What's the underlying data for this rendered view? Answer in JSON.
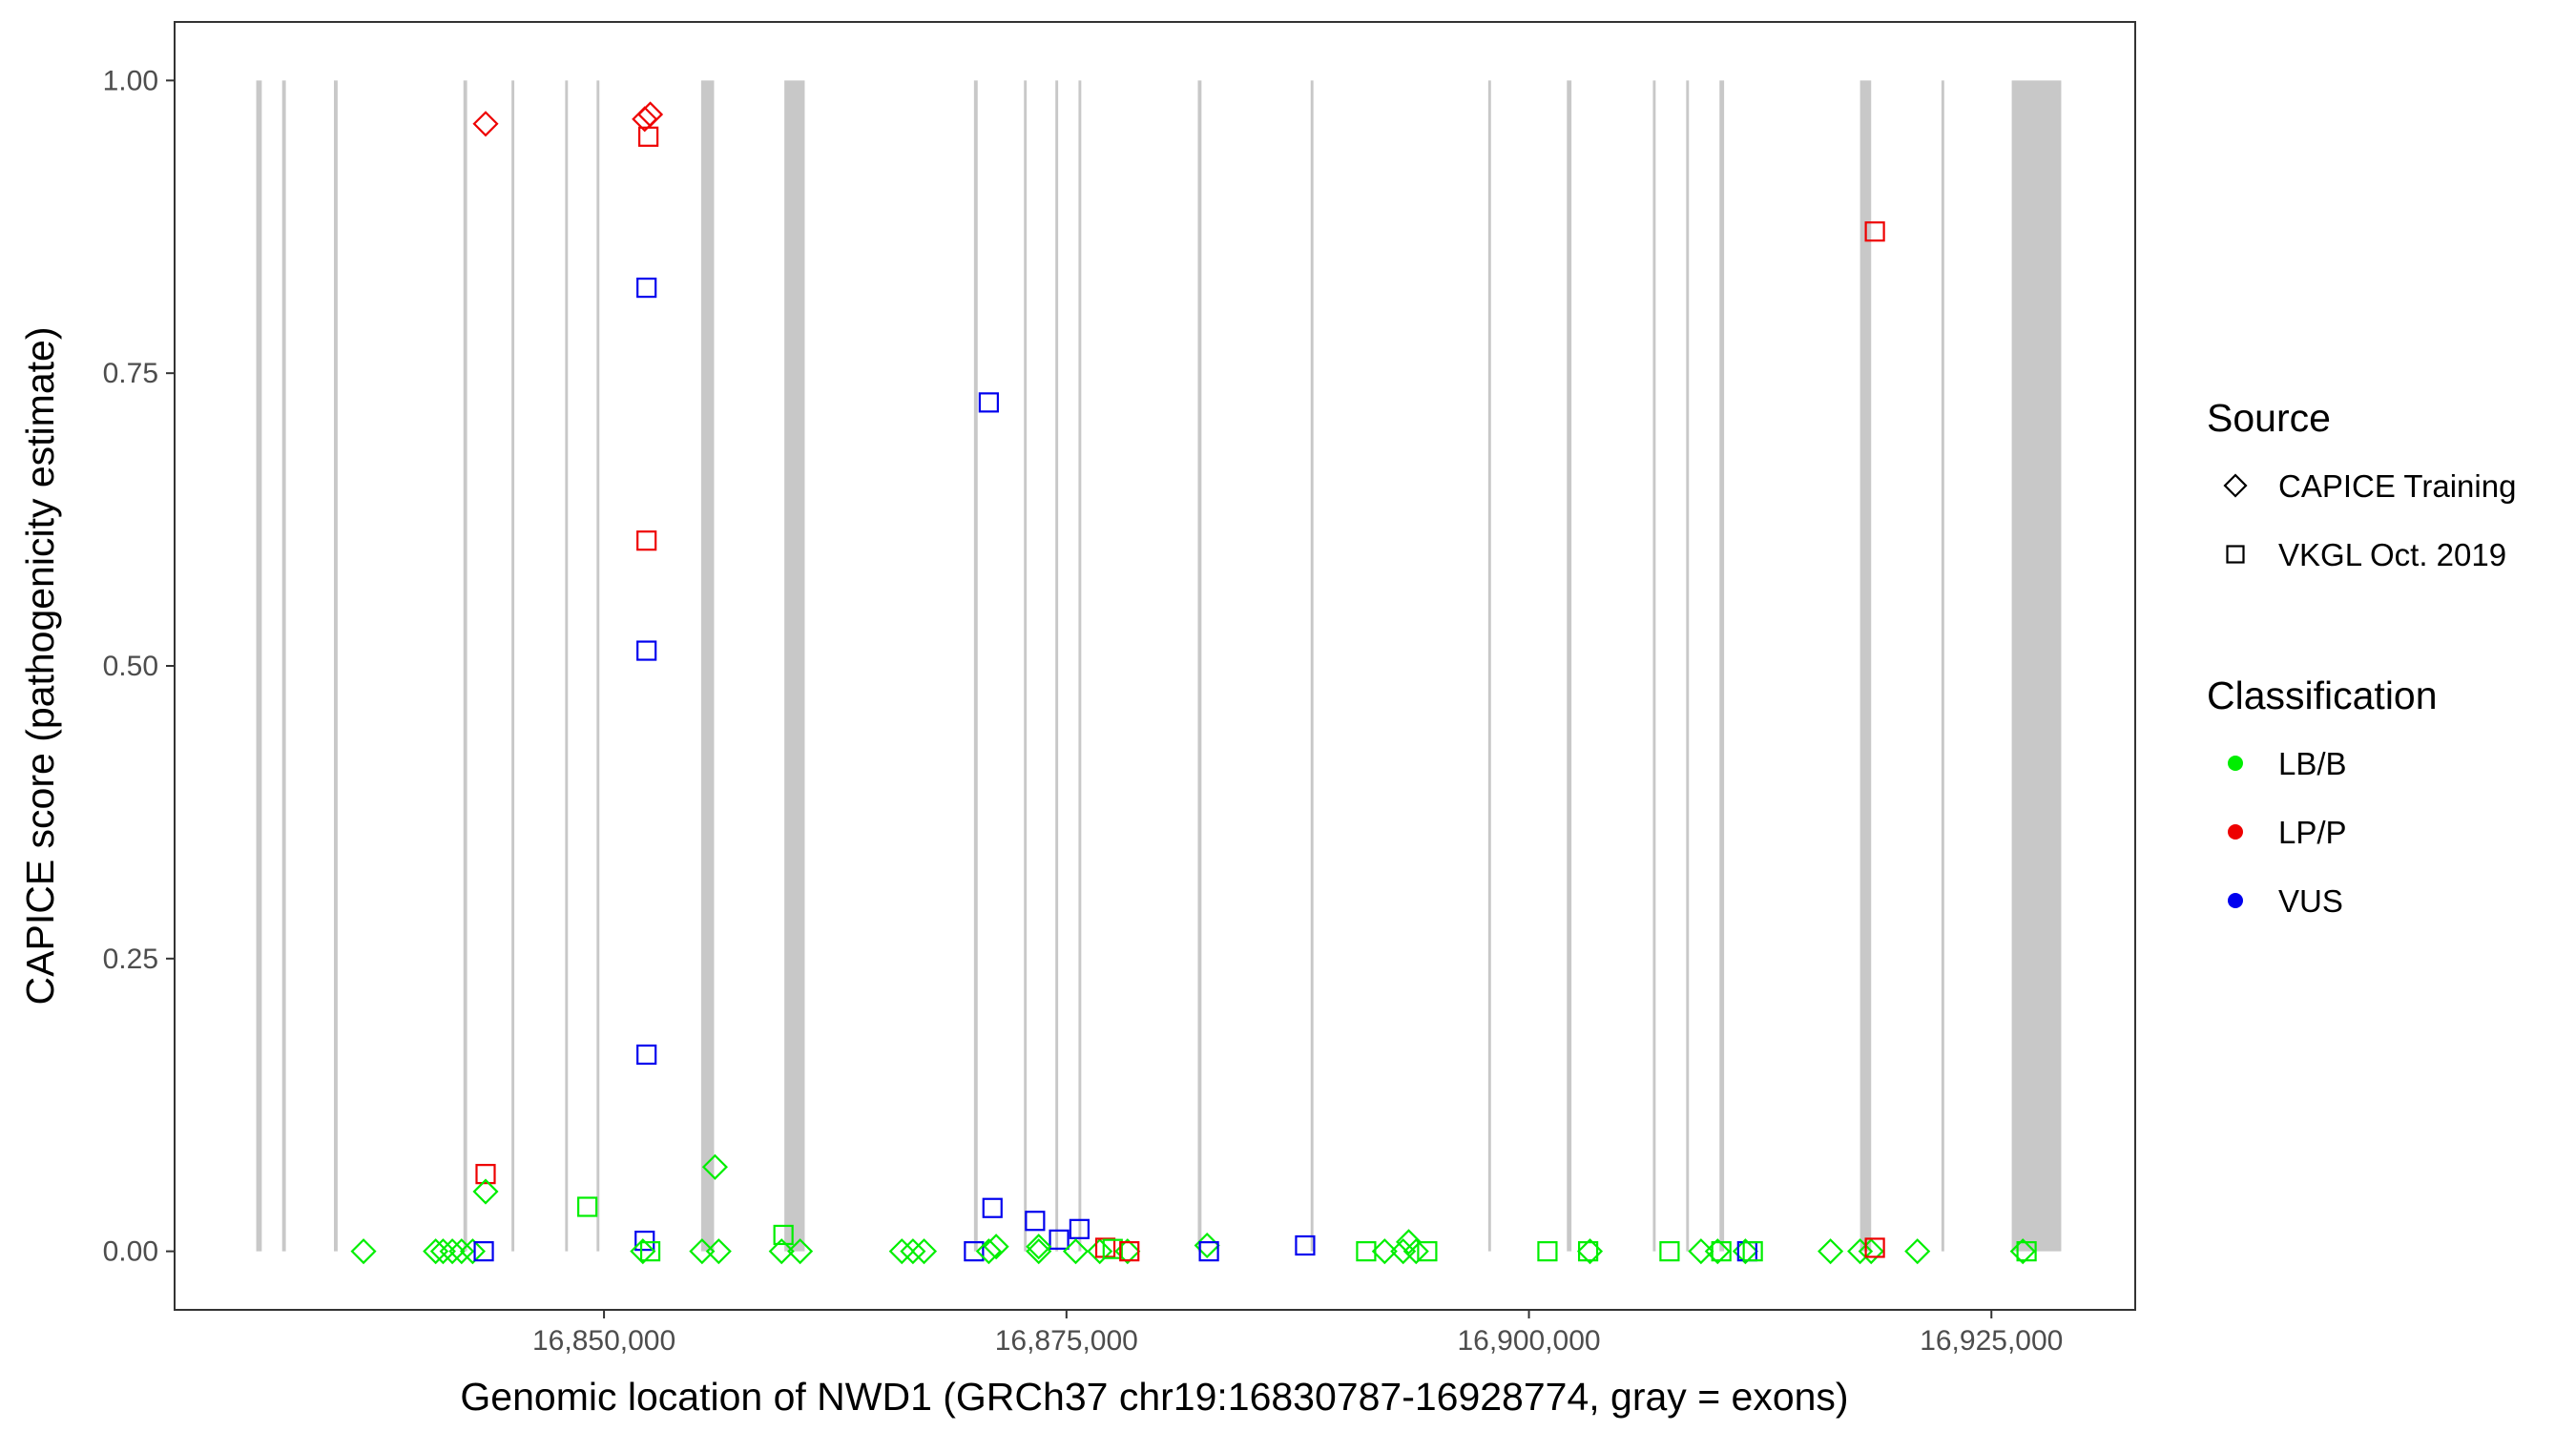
{
  "chart_data": {
    "type": "scatter",
    "title": "",
    "xlabel": "Genomic location of NWD1 (GRCh37 chr19:16830787-16928774, gray = exons)",
    "ylabel": "CAPICE score (pathogenicity estimate)",
    "xlim": [
      16826787,
      16932774
    ],
    "ylim": [
      -0.05,
      1.05
    ],
    "x_ticks": [
      {
        "value": 16850000,
        "label": "16,850,000"
      },
      {
        "value": 16875000,
        "label": "16,875,000"
      },
      {
        "value": 16900000,
        "label": "16,900,000"
      },
      {
        "value": 16925000,
        "label": "16,925,000"
      }
    ],
    "y_ticks": [
      {
        "value": 0,
        "label": "0.00"
      },
      {
        "value": 0.25,
        "label": "0.25"
      },
      {
        "value": 0.5,
        "label": "0.50"
      },
      {
        "value": 0.75,
        "label": "0.75"
      },
      {
        "value": 1,
        "label": "1.00"
      }
    ],
    "grid": false,
    "exons": [
      [
        16831200,
        16831500
      ],
      [
        16832600,
        16832800
      ],
      [
        16835400,
        16835600
      ],
      [
        16842400,
        16842600
      ],
      [
        16845000,
        16845150
      ],
      [
        16847900,
        16848050
      ],
      [
        16849600,
        16849750
      ],
      [
        16855250,
        16855950
      ],
      [
        16859750,
        16860850
      ],
      [
        16870000,
        16870200
      ],
      [
        16872700,
        16872850
      ],
      [
        16874400,
        16874550
      ],
      [
        16875650,
        16875800
      ],
      [
        16882100,
        16882300
      ],
      [
        16888200,
        16888350
      ],
      [
        16897800,
        16897950
      ],
      [
        16902050,
        16902300
      ],
      [
        16906700,
        16906850
      ],
      [
        16908500,
        16908650
      ],
      [
        16910300,
        16910550
      ],
      [
        16917900,
        16918500
      ],
      [
        16922300,
        16922450
      ],
      [
        16926100,
        16928774
      ]
    ],
    "legend_position": "right",
    "legend": {
      "source_title": "Source",
      "source": [
        {
          "label": "CAPICE Training",
          "shape": "diamond"
        },
        {
          "label": "VKGL Oct. 2019",
          "shape": "square"
        }
      ],
      "class_title": "Classification",
      "classes": [
        {
          "label": "LB/B",
          "color": "#00ee00"
        },
        {
          "label": "LP/P",
          "color": "#ee0000"
        },
        {
          "label": "VUS",
          "color": "#0000ee"
        }
      ]
    },
    "class_colors": {
      "LB/B": "#00ee00",
      "LP/P": "#ee0000",
      "VUS": "#0000ee"
    },
    "points": [
      {
        "x": 16843600,
        "y": 0.963,
        "shape": "diamond",
        "cls": "LP/P"
      },
      {
        "x": 16852200,
        "y": 0.967,
        "shape": "diamond",
        "cls": "LP/P"
      },
      {
        "x": 16852500,
        "y": 0.971,
        "shape": "diamond",
        "cls": "LP/P"
      },
      {
        "x": 16852400,
        "y": 0.952,
        "shape": "square",
        "cls": "LP/P"
      },
      {
        "x": 16852300,
        "y": 0.823,
        "shape": "square",
        "cls": "VUS"
      },
      {
        "x": 16870800,
        "y": 0.725,
        "shape": "square",
        "cls": "VUS"
      },
      {
        "x": 16852300,
        "y": 0.607,
        "shape": "square",
        "cls": "LP/P"
      },
      {
        "x": 16852300,
        "y": 0.513,
        "shape": "square",
        "cls": "VUS"
      },
      {
        "x": 16852300,
        "y": 0.168,
        "shape": "square",
        "cls": "VUS"
      },
      {
        "x": 16918700,
        "y": 0.871,
        "shape": "square",
        "cls": "LP/P"
      },
      {
        "x": 16843600,
        "y": 0.066,
        "shape": "square",
        "cls": "LP/P"
      },
      {
        "x": 16843600,
        "y": 0.051,
        "shape": "diamond",
        "cls": "LB/B"
      },
      {
        "x": 16849100,
        "y": 0.038,
        "shape": "square",
        "cls": "LB/B"
      },
      {
        "x": 16856000,
        "y": 0.072,
        "shape": "diamond",
        "cls": "LB/B"
      },
      {
        "x": 16859700,
        "y": 0.014,
        "shape": "square",
        "cls": "LB/B"
      },
      {
        "x": 16852200,
        "y": 0.009,
        "shape": "square",
        "cls": "VUS"
      },
      {
        "x": 16871000,
        "y": 0.037,
        "shape": "square",
        "cls": "VUS"
      },
      {
        "x": 16873300,
        "y": 0.026,
        "shape": "square",
        "cls": "VUS"
      },
      {
        "x": 16874600,
        "y": 0.01,
        "shape": "square",
        "cls": "VUS"
      },
      {
        "x": 16875700,
        "y": 0.019,
        "shape": "square",
        "cls": "VUS"
      },
      {
        "x": 16887900,
        "y": 0.005,
        "shape": "square",
        "cls": "VUS"
      },
      {
        "x": 16882600,
        "y": 0.005,
        "shape": "diamond",
        "cls": "LB/B"
      },
      {
        "x": 16893500,
        "y": 0.008,
        "shape": "diamond",
        "cls": "LB/B"
      },
      {
        "x": 16873500,
        "y": 0.004,
        "shape": "diamond",
        "cls": "LB/B"
      },
      {
        "x": 16871200,
        "y": 0.004,
        "shape": "diamond",
        "cls": "LB/B"
      },
      {
        "x": 16837000,
        "y": 0,
        "shape": "diamond",
        "cls": "LB/B"
      },
      {
        "x": 16840900,
        "y": 0,
        "shape": "diamond",
        "cls": "LB/B"
      },
      {
        "x": 16841300,
        "y": 0,
        "shape": "diamond",
        "cls": "LB/B"
      },
      {
        "x": 16841800,
        "y": 0,
        "shape": "diamond",
        "cls": "LB/B"
      },
      {
        "x": 16842300,
        "y": 0,
        "shape": "diamond",
        "cls": "LB/B"
      },
      {
        "x": 16842900,
        "y": 0,
        "shape": "diamond",
        "cls": "LB/B"
      },
      {
        "x": 16843500,
        "y": 0,
        "shape": "square",
        "cls": "VUS"
      },
      {
        "x": 16852100,
        "y": 0,
        "shape": "diamond",
        "cls": "LB/B"
      },
      {
        "x": 16852500,
        "y": 0,
        "shape": "square",
        "cls": "LB/B"
      },
      {
        "x": 16855300,
        "y": 0,
        "shape": "diamond",
        "cls": "LB/B"
      },
      {
        "x": 16856200,
        "y": 0,
        "shape": "diamond",
        "cls": "LB/B"
      },
      {
        "x": 16859600,
        "y": 0,
        "shape": "diamond",
        "cls": "LB/B"
      },
      {
        "x": 16860600,
        "y": 0,
        "shape": "diamond",
        "cls": "LB/B"
      },
      {
        "x": 16866100,
        "y": 0,
        "shape": "diamond",
        "cls": "LB/B"
      },
      {
        "x": 16866700,
        "y": 0,
        "shape": "diamond",
        "cls": "LB/B"
      },
      {
        "x": 16867300,
        "y": 0,
        "shape": "diamond",
        "cls": "LB/B"
      },
      {
        "x": 16870000,
        "y": 0,
        "shape": "square",
        "cls": "VUS"
      },
      {
        "x": 16870800,
        "y": 0,
        "shape": "diamond",
        "cls": "LB/B"
      },
      {
        "x": 16873500,
        "y": 0,
        "shape": "diamond",
        "cls": "LB/B"
      },
      {
        "x": 16875500,
        "y": 0,
        "shape": "diamond",
        "cls": "LB/B"
      },
      {
        "x": 16876800,
        "y": 0,
        "shape": "diamond",
        "cls": "LB/B"
      },
      {
        "x": 16877100,
        "y": 0.003,
        "shape": "square",
        "cls": "LP/P"
      },
      {
        "x": 16877500,
        "y": 0.002,
        "shape": "square",
        "cls": "LB/B"
      },
      {
        "x": 16878300,
        "y": 0,
        "shape": "diamond",
        "cls": "LB/B"
      },
      {
        "x": 16878400,
        "y": 0,
        "shape": "square",
        "cls": "LP/P"
      },
      {
        "x": 16882700,
        "y": 0,
        "shape": "square",
        "cls": "VUS"
      },
      {
        "x": 16891200,
        "y": 0,
        "shape": "square",
        "cls": "LB/B"
      },
      {
        "x": 16892200,
        "y": 0,
        "shape": "diamond",
        "cls": "LB/B"
      },
      {
        "x": 16893200,
        "y": 0,
        "shape": "diamond",
        "cls": "LB/B"
      },
      {
        "x": 16893900,
        "y": 0,
        "shape": "diamond",
        "cls": "LB/B"
      },
      {
        "x": 16894500,
        "y": 0,
        "shape": "square",
        "cls": "LB/B"
      },
      {
        "x": 16901000,
        "y": 0,
        "shape": "square",
        "cls": "LB/B"
      },
      {
        "x": 16903200,
        "y": 0,
        "shape": "square",
        "cls": "LB/B"
      },
      {
        "x": 16903300,
        "y": 0,
        "shape": "diamond",
        "cls": "LB/B"
      },
      {
        "x": 16907600,
        "y": 0,
        "shape": "square",
        "cls": "LB/B"
      },
      {
        "x": 16909300,
        "y": 0,
        "shape": "diamond",
        "cls": "LB/B"
      },
      {
        "x": 16910200,
        "y": 0,
        "shape": "diamond",
        "cls": "LB/B"
      },
      {
        "x": 16910400,
        "y": 0,
        "shape": "square",
        "cls": "LB/B"
      },
      {
        "x": 16911700,
        "y": 0,
        "shape": "diamond",
        "cls": "LB/B"
      },
      {
        "x": 16911800,
        "y": 0,
        "shape": "square",
        "cls": "VUS"
      },
      {
        "x": 16912100,
        "y": 0,
        "shape": "square",
        "cls": "LB/B"
      },
      {
        "x": 16916300,
        "y": 0,
        "shape": "diamond",
        "cls": "LB/B"
      },
      {
        "x": 16917900,
        "y": 0,
        "shape": "diamond",
        "cls": "LB/B"
      },
      {
        "x": 16918500,
        "y": 0,
        "shape": "diamond",
        "cls": "LB/B"
      },
      {
        "x": 16918700,
        "y": 0.003,
        "shape": "square",
        "cls": "LP/P"
      },
      {
        "x": 16921000,
        "y": 0,
        "shape": "diamond",
        "cls": "LB/B"
      },
      {
        "x": 16926700,
        "y": 0,
        "shape": "diamond",
        "cls": "LB/B"
      },
      {
        "x": 16926900,
        "y": 0,
        "shape": "square",
        "cls": "LB/B"
      }
    ]
  }
}
